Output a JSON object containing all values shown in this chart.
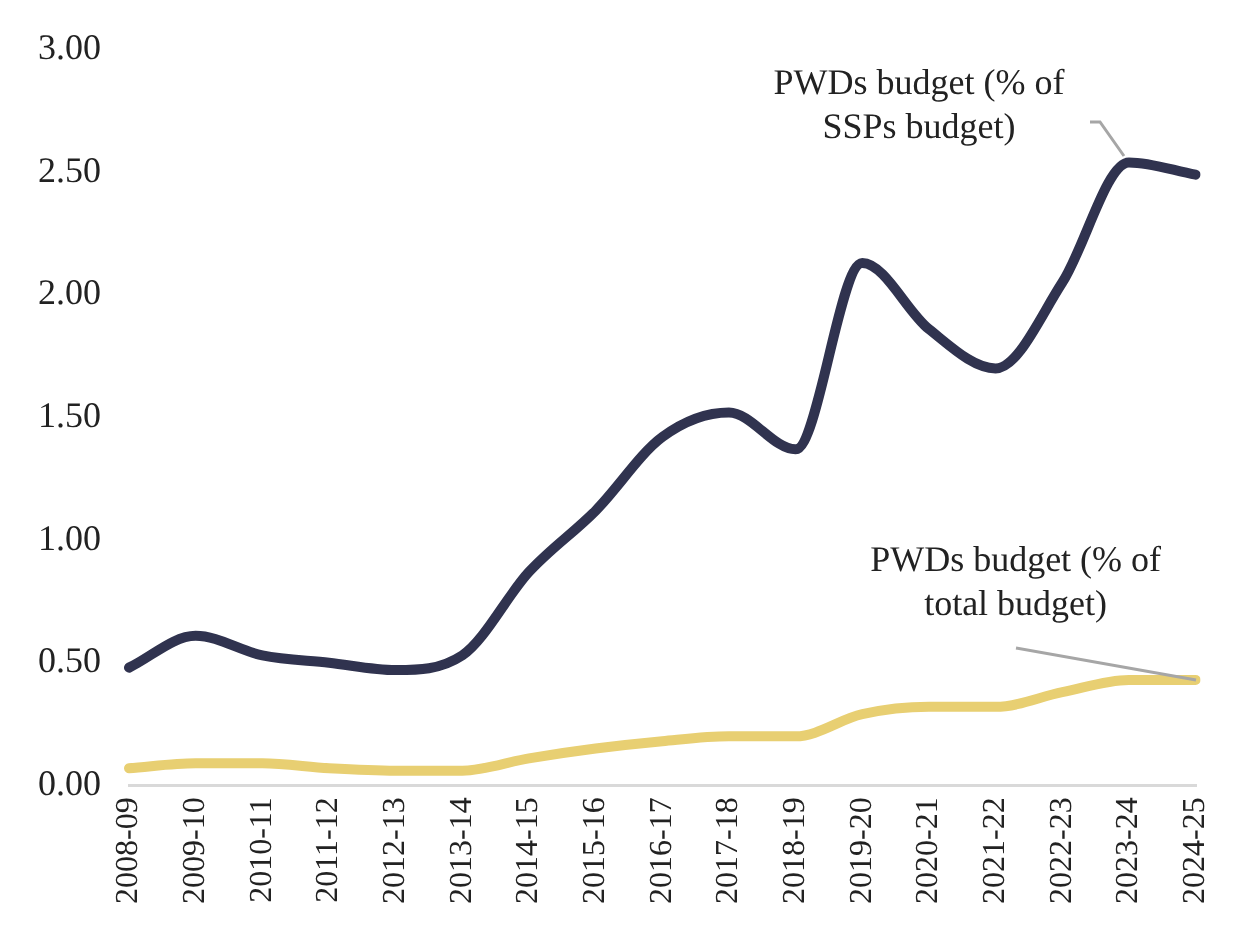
{
  "chart_data": {
    "type": "line",
    "categories": [
      "2008-09",
      "2009-10",
      "2010-11",
      "2011-12",
      "2012-13",
      "2013-14",
      "2014-15",
      "2015-16",
      "2016-17",
      "2017-18",
      "2018-19",
      "2019-20",
      "2020-21",
      "2021-22",
      "2022-23",
      "2023-24",
      "2024-25"
    ],
    "series": [
      {
        "name": "PWDs budget (% of SSPs budget)",
        "color": "#30334f",
        "values": [
          0.48,
          0.61,
          0.53,
          0.5,
          0.47,
          0.53,
          0.87,
          1.12,
          1.42,
          1.52,
          1.37,
          2.13,
          1.86,
          1.7,
          2.05,
          2.54,
          2.49
        ]
      },
      {
        "name": "PWDs budget (% of total budget)",
        "color": "#e8cf72",
        "values": [
          0.07,
          0.09,
          0.09,
          0.07,
          0.06,
          0.06,
          0.11,
          0.15,
          0.18,
          0.2,
          0.2,
          0.29,
          0.32,
          0.32,
          0.38,
          0.43,
          0.43
        ]
      }
    ],
    "ylim": [
      0,
      3
    ],
    "yticks": [
      {
        "value": 0,
        "label": "0.00"
      },
      {
        "value": 0.5,
        "label": "0.50"
      },
      {
        "value": 1,
        "label": "1.00"
      },
      {
        "value": 1.5,
        "label": "1.50"
      },
      {
        "value": 2,
        "label": "2.00"
      },
      {
        "value": 2.5,
        "label": "2.50"
      },
      {
        "value": 3,
        "label": "3.00"
      }
    ],
    "grid": false,
    "legend": false,
    "marker": "none",
    "line_style": "solid"
  }
}
